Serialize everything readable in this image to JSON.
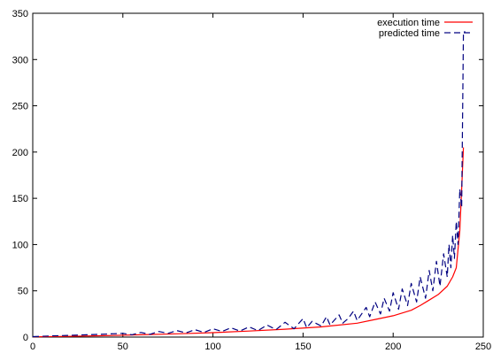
{
  "chart_data": {
    "type": "line",
    "title": "",
    "xlabel": "",
    "ylabel": "",
    "xlim": [
      0,
      250
    ],
    "ylim": [
      0,
      350
    ],
    "xticks": [
      0,
      50,
      100,
      150,
      200,
      250
    ],
    "yticks": [
      0,
      50,
      100,
      150,
      200,
      250,
      300,
      350
    ],
    "grid": false,
    "legend_position": "top-right",
    "series": [
      {
        "name": "execution time",
        "color": "#ff0000",
        "style": "solid",
        "x": [
          0,
          20,
          40,
          60,
          80,
          100,
          120,
          140,
          160,
          180,
          190,
          200,
          210,
          215,
          220,
          225,
          230,
          233,
          235,
          236,
          237,
          238,
          239
        ],
        "y": [
          0.3,
          0.8,
          1.5,
          2.5,
          3.5,
          4.8,
          6.5,
          8.5,
          11,
          15,
          19,
          23,
          29,
          34,
          40,
          46,
          55,
          65,
          75,
          95,
          115,
          160,
          205
        ]
      },
      {
        "name": "predicted time",
        "color": "#000080",
        "style": "dashed",
        "x": [
          0,
          10,
          20,
          30,
          40,
          50,
          55,
          60,
          65,
          70,
          75,
          80,
          85,
          90,
          95,
          100,
          105,
          110,
          115,
          120,
          125,
          130,
          135,
          140,
          145,
          150,
          152,
          155,
          160,
          163,
          165,
          170,
          172,
          175,
          178,
          180,
          185,
          187,
          190,
          193,
          195,
          198,
          200,
          203,
          205,
          208,
          210,
          213,
          215,
          218,
          220,
          222,
          224,
          226,
          228,
          230,
          231,
          232,
          233,
          234,
          235,
          236,
          237,
          238,
          239,
          240
        ],
        "y": [
          0.5,
          1.2,
          1.8,
          2.5,
          3.2,
          4,
          2.5,
          5,
          3,
          6,
          4,
          7,
          4.5,
          8,
          5,
          9,
          6,
          10,
          6.5,
          11,
          7,
          13,
          8,
          16,
          9,
          20,
          10,
          17,
          12,
          22,
          13,
          24,
          15,
          20,
          28,
          18,
          32,
          22,
          38,
          25,
          42,
          28,
          48,
          30,
          52,
          34,
          58,
          38,
          65,
          42,
          72,
          50,
          82,
          55,
          90,
          65,
          100,
          75,
          110,
          85,
          125,
          100,
          160,
          140,
          330,
          330
        ]
      }
    ]
  }
}
